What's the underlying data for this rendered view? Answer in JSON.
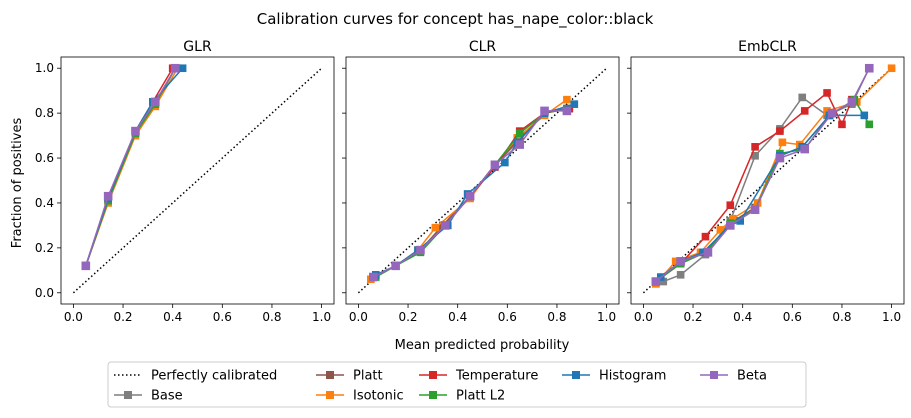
{
  "figure_title": "Calibration curves for concept has_nape_color::black",
  "shared_xlabel": "Mean predicted probability",
  "shared_ylabel": "Fraction of positives",
  "colors": {
    "Perfectly calibrated": "#000000",
    "Base": "#7f7f7f",
    "Platt": "#8c564b",
    "Isotonic": "#ff7f0e",
    "Temperature": "#d62728",
    "Platt L2": "#2ca02c",
    "Histogram": "#1f77b4",
    "Beta": "#9467bd"
  },
  "legend": {
    "placement": "bottom-center",
    "columns": [
      [
        "Perfectly calibrated",
        "Base"
      ],
      [
        "Platt",
        "Isotonic"
      ],
      [
        "Temperature",
        "Platt L2"
      ],
      [
        "Histogram"
      ],
      [
        "Beta"
      ]
    ]
  },
  "chart_data": [
    {
      "type": "line",
      "title": "GLR",
      "xlabel": "",
      "ylabel": "Fraction of positives",
      "xlim": [
        -0.05,
        1.05
      ],
      "ylim": [
        -0.05,
        1.05
      ],
      "xticks": [
        "0.0",
        "0.2",
        "0.4",
        "0.6",
        "0.8",
        "1.0"
      ],
      "yticks": [
        "0.0",
        "0.2",
        "0.4",
        "0.6",
        "0.8",
        "1.0"
      ],
      "grid": false,
      "series": [
        {
          "name": "Base",
          "x": [
            0.05,
            0.14,
            0.25,
            0.33,
            0.41
          ],
          "y": [
            0.12,
            0.42,
            0.72,
            0.84,
            1.0
          ]
        },
        {
          "name": "Platt",
          "x": [
            0.05,
            0.14,
            0.25,
            0.33,
            0.41
          ],
          "y": [
            0.12,
            0.41,
            0.72,
            0.84,
            1.0
          ]
        },
        {
          "name": "Isotonic",
          "x": [
            0.05,
            0.14,
            0.25,
            0.33,
            0.42
          ],
          "y": [
            0.12,
            0.4,
            0.7,
            0.83,
            1.0
          ]
        },
        {
          "name": "Temperature",
          "x": [
            0.05,
            0.14,
            0.25,
            0.32,
            0.4
          ],
          "y": [
            0.12,
            0.42,
            0.72,
            0.85,
            1.0
          ]
        },
        {
          "name": "Platt L2",
          "x": [
            0.05,
            0.14,
            0.25,
            0.33,
            0.41
          ],
          "y": [
            0.12,
            0.41,
            0.71,
            0.84,
            1.0
          ]
        },
        {
          "name": "Histogram",
          "x": [
            0.05,
            0.14,
            0.25,
            0.32,
            0.44
          ],
          "y": [
            0.12,
            0.42,
            0.72,
            0.85,
            1.0
          ]
        },
        {
          "name": "Beta",
          "x": [
            0.05,
            0.14,
            0.25,
            0.33,
            0.41
          ],
          "y": [
            0.12,
            0.43,
            0.72,
            0.85,
            1.0
          ]
        }
      ]
    },
    {
      "type": "line",
      "title": "CLR",
      "xlabel": "Mean predicted probability",
      "ylabel": "",
      "xlim": [
        -0.05,
        1.05
      ],
      "ylim": [
        -0.05,
        1.05
      ],
      "xticks": [
        "0.0",
        "0.2",
        "0.4",
        "0.6",
        "0.8",
        "1.0"
      ],
      "yticks": [],
      "grid": false,
      "series": [
        {
          "name": "Base",
          "x": [
            0.06,
            0.15,
            0.25,
            0.34,
            0.45,
            0.55,
            0.65,
            0.75,
            0.84
          ],
          "y": [
            0.07,
            0.12,
            0.19,
            0.3,
            0.43,
            0.57,
            0.68,
            0.8,
            0.82
          ]
        },
        {
          "name": "Platt",
          "x": [
            0.06,
            0.15,
            0.25,
            0.34,
            0.45,
            0.55,
            0.65,
            0.75,
            0.84
          ],
          "y": [
            0.07,
            0.12,
            0.19,
            0.3,
            0.43,
            0.57,
            0.69,
            0.8,
            0.82
          ]
        },
        {
          "name": "Isotonic",
          "x": [
            0.05,
            0.15,
            0.24,
            0.31,
            0.45,
            0.55,
            0.64,
            0.75,
            0.84
          ],
          "y": [
            0.06,
            0.12,
            0.19,
            0.29,
            0.42,
            0.57,
            0.69,
            0.79,
            0.86
          ]
        },
        {
          "name": "Temperature",
          "x": [
            0.06,
            0.15,
            0.25,
            0.35,
            0.45,
            0.55,
            0.65,
            0.75,
            0.85
          ],
          "y": [
            0.07,
            0.12,
            0.19,
            0.3,
            0.43,
            0.56,
            0.72,
            0.8,
            0.82
          ]
        },
        {
          "name": "Platt L2",
          "x": [
            0.07,
            0.15,
            0.25,
            0.35,
            0.45,
            0.55,
            0.65,
            0.75,
            0.84
          ],
          "y": [
            0.07,
            0.12,
            0.18,
            0.3,
            0.43,
            0.57,
            0.71,
            0.8,
            0.82
          ]
        },
        {
          "name": "Histogram",
          "x": [
            0.07,
            0.15,
            0.24,
            0.36,
            0.44,
            0.59,
            0.64,
            0.75,
            0.87
          ],
          "y": [
            0.08,
            0.12,
            0.19,
            0.3,
            0.44,
            0.58,
            0.67,
            0.8,
            0.84
          ]
        },
        {
          "name": "Beta",
          "x": [
            0.06,
            0.15,
            0.25,
            0.35,
            0.45,
            0.55,
            0.65,
            0.75,
            0.84
          ],
          "y": [
            0.07,
            0.12,
            0.19,
            0.3,
            0.43,
            0.57,
            0.66,
            0.81,
            0.81
          ]
        }
      ]
    },
    {
      "type": "line",
      "title": "EmbCLR",
      "xlabel": "",
      "ylabel": "",
      "xlim": [
        -0.05,
        1.05
      ],
      "ylim": [
        -0.05,
        1.05
      ],
      "xticks": [
        "0.0",
        "0.2",
        "0.4",
        "0.6",
        "0.8",
        "1.0"
      ],
      "yticks": [],
      "grid": false,
      "series": [
        {
          "name": "Base",
          "x": [
            0.05,
            0.08,
            0.15,
            0.25,
            0.35,
            0.45,
            0.55,
            0.64,
            0.74,
            0.84,
            0.91
          ],
          "y": [
            0.04,
            0.05,
            0.08,
            0.17,
            0.32,
            0.61,
            0.73,
            0.87,
            0.79,
            0.84,
            1.0
          ]
        },
        {
          "name": "Platt",
          "x": [
            0.05,
            0.15,
            0.25,
            0.35,
            0.45,
            0.55,
            0.64,
            0.75,
            0.84
          ],
          "y": [
            0.05,
            0.13,
            0.18,
            0.31,
            0.38,
            0.61,
            0.65,
            0.79,
            0.85
          ]
        },
        {
          "name": "Isotonic",
          "x": [
            0.05,
            0.13,
            0.23,
            0.31,
            0.36,
            0.46,
            0.56,
            0.63,
            0.74,
            0.86,
            1.0
          ],
          "y": [
            0.04,
            0.14,
            0.18,
            0.28,
            0.33,
            0.4,
            0.67,
            0.66,
            0.81,
            0.85,
            1.0
          ]
        },
        {
          "name": "Temperature",
          "x": [
            0.05,
            0.15,
            0.25,
            0.35,
            0.45,
            0.55,
            0.65,
            0.74,
            0.8,
            0.84
          ],
          "y": [
            0.05,
            0.13,
            0.25,
            0.39,
            0.65,
            0.72,
            0.81,
            0.89,
            0.75,
            0.86
          ]
        },
        {
          "name": "Platt L2",
          "x": [
            0.05,
            0.15,
            0.25,
            0.35,
            0.45,
            0.55,
            0.65,
            0.75,
            0.85,
            0.91
          ],
          "y": [
            0.05,
            0.13,
            0.18,
            0.31,
            0.37,
            0.62,
            0.64,
            0.79,
            0.86,
            0.75
          ]
        },
        {
          "name": "Histogram",
          "x": [
            0.07,
            0.15,
            0.24,
            0.35,
            0.39,
            0.55,
            0.64,
            0.75,
            0.89
          ],
          "y": [
            0.07,
            0.14,
            0.18,
            0.3,
            0.32,
            0.61,
            0.65,
            0.79,
            0.79
          ]
        },
        {
          "name": "Beta",
          "x": [
            0.05,
            0.15,
            0.26,
            0.35,
            0.45,
            0.55,
            0.65,
            0.76,
            0.84,
            0.91
          ],
          "y": [
            0.05,
            0.14,
            0.18,
            0.3,
            0.37,
            0.6,
            0.64,
            0.8,
            0.85,
            1.0
          ]
        }
      ]
    }
  ]
}
